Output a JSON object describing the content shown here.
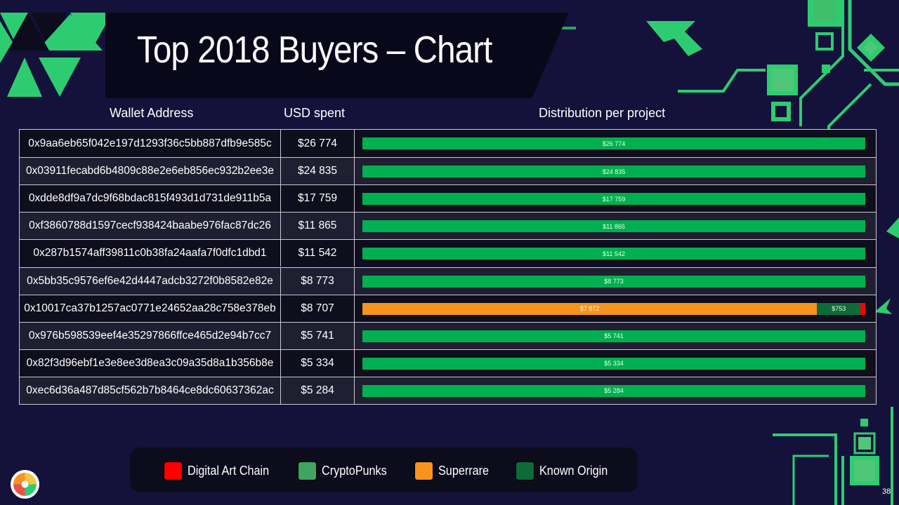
{
  "title": "Top 2018 Buyers – Chart",
  "headers": {
    "wallet": "Wallet Address",
    "usd": "USD spent",
    "distribution": "Distribution per project"
  },
  "page_number": "38",
  "colors": {
    "background": "#14123a",
    "digital_art_chain": "#ff0000",
    "cryptopunks": "#00b050",
    "superrare": "#f7941d",
    "known_origin": "#0d6b3a",
    "accent_green": "#2ecc71"
  },
  "legend": [
    {
      "label": "Digital Art Chain",
      "color": "#ff0000"
    },
    {
      "label": "CryptoPunks",
      "color": "#3fa45f"
    },
    {
      "label": "Superrare",
      "color": "#f7941d"
    },
    {
      "label": "Known Origin",
      "color": "#0d6b3a"
    }
  ],
  "chart_data": {
    "type": "bar",
    "stacked": true,
    "orientation": "horizontal",
    "title": "Top 2018 Buyers – Chart",
    "series_names": [
      "Superrare",
      "CryptoPunks",
      "Known Origin",
      "Digital Art Chain"
    ],
    "rows": [
      {
        "address": "0x9aa6eb65f042e197d1293f36c5bb887dfb9e585c",
        "usd": "$26 774",
        "segments": [
          {
            "series": "CryptoPunks",
            "value": 26774,
            "label": "$26 774"
          }
        ]
      },
      {
        "address": "0x03911fecabd6b4809c88e2e6eb856ec932b2ee3e",
        "usd": "$24 835",
        "segments": [
          {
            "series": "CryptoPunks",
            "value": 24835,
            "label": "$24 835"
          }
        ]
      },
      {
        "address": "0xdde8df9a7dc9f68bdac815f493d1d731de911b5a",
        "usd": "$17 759",
        "segments": [
          {
            "series": "CryptoPunks",
            "value": 17759,
            "label": "$17 759"
          }
        ]
      },
      {
        "address": "0xf3860788d1597cecf938424baabe976fac87dc26",
        "usd": "$11 865",
        "segments": [
          {
            "series": "CryptoPunks",
            "value": 11865,
            "label": "$11 865"
          }
        ]
      },
      {
        "address": "0x287b1574aff39811c0b38fa24aafa7f0dfc1dbd1",
        "usd": "$11 542",
        "segments": [
          {
            "series": "CryptoPunks",
            "value": 11542,
            "label": "$11 542"
          }
        ]
      },
      {
        "address": "0x5bb35c9576ef6e42d4447adcb3272f0b8582e82e",
        "usd": "$8 773",
        "segments": [
          {
            "series": "CryptoPunks",
            "value": 8773,
            "label": "$8 773"
          }
        ]
      },
      {
        "address": "0x10017ca37b1257ac0771e24652aa28c758e378eb",
        "usd": "$8 707",
        "segments": [
          {
            "series": "Superrare",
            "value": 7872,
            "label": "$7 872"
          },
          {
            "series": "Known Origin",
            "value": 753,
            "label": "$753"
          },
          {
            "series": "Digital Art Chain",
            "value": 82,
            "label": ""
          }
        ]
      },
      {
        "address": "0x976b598539eef4e35297866ffce465d2e94b7cc7",
        "usd": "$5 741",
        "segments": [
          {
            "series": "CryptoPunks",
            "value": 5741,
            "label": "$5 741"
          }
        ]
      },
      {
        "address": "0x82f3d96ebf1e3e8ee3d8ea3c09a35d8a1b356b8e",
        "usd": "$5 334",
        "segments": [
          {
            "series": "CryptoPunks",
            "value": 5334,
            "label": "$5 334"
          }
        ]
      },
      {
        "address": "0xec6d36a487d85cf562b7b8464ce8dc60637362ac",
        "usd": "$5 284",
        "segments": [
          {
            "series": "CryptoPunks",
            "value": 5284,
            "label": "$5 284"
          }
        ]
      }
    ],
    "series_colors": {
      "CryptoPunks": "#00b050",
      "Superrare": "#f7941d",
      "Known Origin": "#0d6b3a",
      "Digital Art Chain": "#ff0000"
    },
    "normalized_per_row": true
  }
}
